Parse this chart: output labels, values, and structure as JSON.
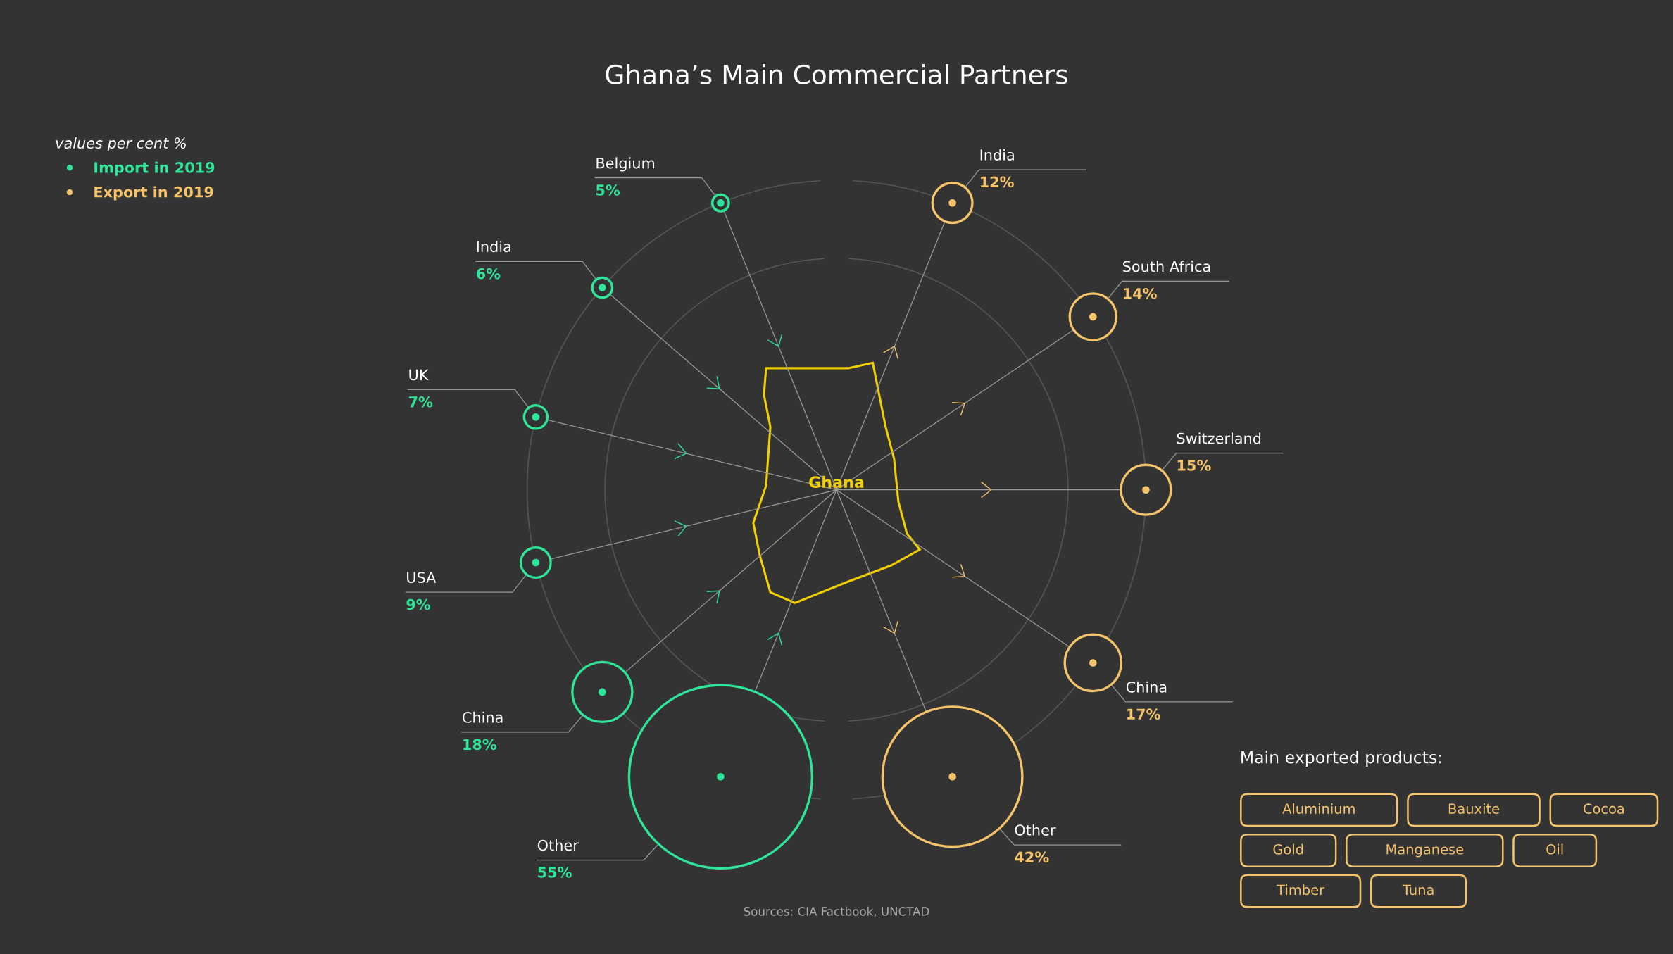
{
  "chart_data": {
    "type": "other",
    "title": "Ghana’s Main Commercial Partners",
    "legend_title": "values per cent %",
    "legend": "top left",
    "categories": [
      "Belgium",
      "India",
      "UK",
      "USA",
      "South Africa",
      "Switzerland",
      "China",
      "Other"
    ],
    "series": [
      {
        "name": "Import in 2019",
        "color": "#2ee59a",
        "values": [
          5,
          6,
          7,
          9,
          null,
          null,
          18,
          55
        ],
        "value_labels": [
          "5%",
          "6%",
          "7%",
          "9%",
          null,
          null,
          "18%",
          "55%"
        ]
      },
      {
        "name": "Export in 2019",
        "color": "#f5c46a",
        "values": [
          null,
          12,
          null,
          null,
          14,
          15,
          17,
          42
        ],
        "value_labels": [
          null,
          "12%",
          null,
          null,
          "14%",
          "15%",
          "17%",
          "42%"
        ]
      }
    ],
    "annotations": [
      "Ghana",
      "Sources: CIA Factbook, UNCTAD",
      "Main exported products:",
      "Aluminium",
      "Bauxite",
      "Cocoa",
      "Gold",
      "Manganese",
      "Oil",
      "Timber",
      "Tuna"
    ]
  }
}
